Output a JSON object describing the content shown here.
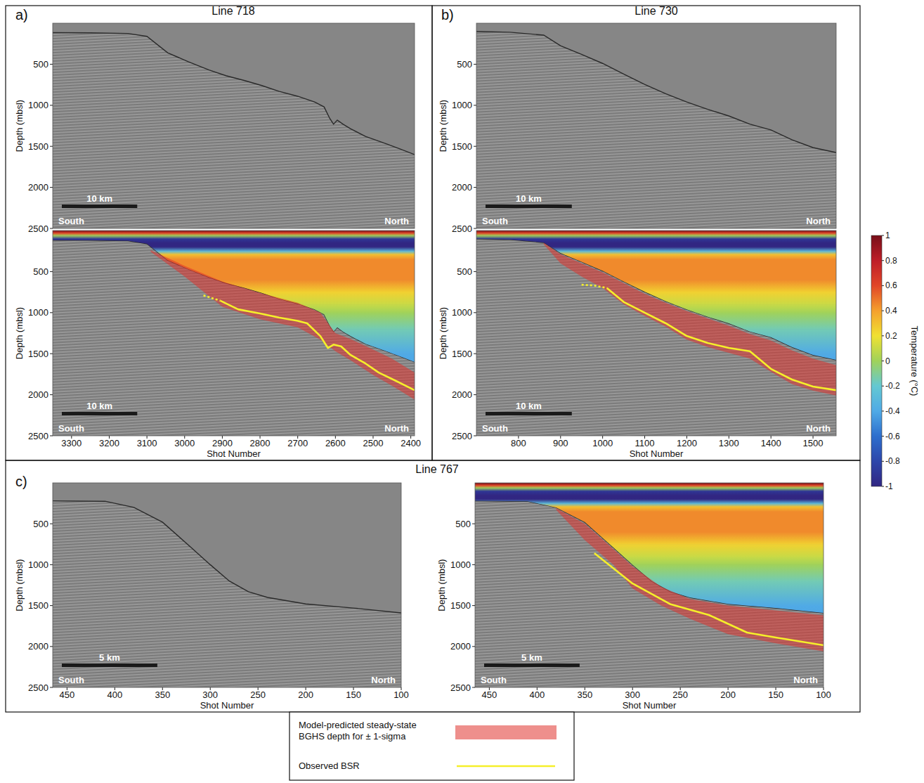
{
  "chart_data": [
    {
      "type": "line",
      "title": "Line 718",
      "panel_label": "a)",
      "y_label": "Depth (mbsl)",
      "xlim": [
        3350,
        2390
      ],
      "ylim": [
        2500,
        0
      ],
      "yticks": [
        500,
        1000,
        1500,
        2000,
        2500
      ],
      "tick_labels": "y",
      "direction_labels": [
        "South",
        "North"
      ],
      "scale_bar": {
        "label": "10 km",
        "length": 200
      },
      "seafloor": {
        "x": [
          3350,
          3250,
          3150,
          3100,
          3045,
          2990,
          2935,
          2890,
          2840,
          2795,
          2750,
          2700,
          2655,
          2630,
          2615,
          2605,
          2595,
          2580,
          2560,
          2520,
          2465,
          2430,
          2390
        ],
        "values": [
          115,
          118,
          125,
          160,
          360,
          470,
          570,
          640,
          700,
          760,
          830,
          890,
          960,
          1020,
          1160,
          1230,
          1180,
          1230,
          1285,
          1380,
          1470,
          1530,
          1600
        ]
      }
    },
    {
      "type": "line",
      "y_label": "Depth (mbsl)",
      "x_label": "Shot Number",
      "xlim": [
        3350,
        2390
      ],
      "ylim": [
        2500,
        0
      ],
      "xticks": [
        3300,
        3200,
        3100,
        3000,
        2900,
        2800,
        2700,
        2600,
        2500,
        2400
      ],
      "yticks": [
        500,
        1000,
        1500,
        2000,
        2500
      ],
      "direction_labels": [
        "South",
        "North"
      ],
      "scale_bar": {
        "label": "10 km",
        "length": 200
      },
      "seafloor": {
        "x": [
          3350,
          3250,
          3150,
          3100,
          3045,
          2990,
          2935,
          2890,
          2840,
          2795,
          2750,
          2700,
          2655,
          2630,
          2615,
          2605,
          2595,
          2580,
          2560,
          2520,
          2465,
          2430,
          2390
        ],
        "values": [
          115,
          118,
          125,
          160,
          360,
          470,
          570,
          640,
          700,
          760,
          830,
          890,
          960,
          1020,
          1160,
          1230,
          1180,
          1230,
          1285,
          1380,
          1470,
          1530,
          1600
        ]
      },
      "series": [
        {
          "name": "Model-predicted steady-state BGHS depth for ± 1-sigma",
          "type": "band",
          "color": "#e0332e",
          "x": [
            3090,
            3000,
            2900,
            2800,
            2700,
            2640,
            2600,
            2560,
            2500,
            2450,
            2390
          ],
          "low": [
            240,
            430,
            620,
            760,
            880,
            1000,
            1250,
            1320,
            1450,
            1560,
            1730
          ],
          "high": [
            260,
            560,
            930,
            1080,
            1180,
            1330,
            1470,
            1580,
            1760,
            1890,
            2060
          ]
        },
        {
          "name": "Observed BSR",
          "type": "line",
          "color": "#f5ef2a",
          "line_style": "solid",
          "x": [
            2905,
            2858,
            2800,
            2750,
            2700,
            2675,
            2640,
            2620,
            2605,
            2585,
            2560,
            2520,
            2485,
            2440,
            2390
          ],
          "values": [
            855,
            960,
            1010,
            1060,
            1100,
            1130,
            1285,
            1430,
            1390,
            1410,
            1515,
            1620,
            1730,
            1830,
            1945
          ]
        }
      ],
      "bsr_inferred": {
        "line_style": "dashed",
        "x": [
          2950,
          2930,
          2905
        ],
        "values": [
          790,
          820,
          855
        ]
      }
    },
    {
      "type": "line",
      "title": "Line 730",
      "panel_label": "b)",
      "y_label": "Depth (mbsl)",
      "xlim": [
        700,
        1555
      ],
      "ylim": [
        2500,
        0
      ],
      "yticks": [
        500,
        1000,
        1500,
        2000,
        2500
      ],
      "tick_labels": "y",
      "direction_labels": [
        "South",
        "North"
      ],
      "scale_bar": {
        "label": "10 km",
        "length": 205
      },
      "seafloor": {
        "x": [
          700,
          780,
          860,
          900,
          950,
          1000,
          1050,
          1100,
          1150,
          1200,
          1250,
          1300,
          1350,
          1400,
          1450,
          1500,
          1555
        ],
        "values": [
          100,
          110,
          145,
          275,
          380,
          490,
          620,
          745,
          860,
          960,
          1050,
          1130,
          1230,
          1300,
          1420,
          1515,
          1575
        ]
      }
    },
    {
      "type": "line",
      "y_label": "Depth (mbsl)",
      "x_label": "Shot Number",
      "xlim": [
        700,
        1555
      ],
      "ylim": [
        2500,
        0
      ],
      "xticks": [
        800,
        900,
        1000,
        1100,
        1200,
        1300,
        1400,
        1500
      ],
      "yticks": [
        500,
        1000,
        1500,
        2000,
        2500
      ],
      "direction_labels": [
        "South",
        "North"
      ],
      "scale_bar": {
        "label": "10 km",
        "length": 205
      },
      "seafloor": {
        "x": [
          700,
          780,
          860,
          900,
          950,
          1000,
          1050,
          1100,
          1150,
          1200,
          1250,
          1300,
          1350,
          1400,
          1450,
          1500,
          1555
        ],
        "values": [
          100,
          110,
          145,
          275,
          380,
          490,
          620,
          745,
          860,
          960,
          1050,
          1130,
          1230,
          1300,
          1420,
          1515,
          1575
        ]
      },
      "series": [
        {
          "name": "Model-predicted steady-state BGHS depth for ± 1-sigma",
          "type": "band",
          "color": "#e0332e",
          "x": [
            860,
            900,
            950,
            1000,
            1050,
            1100,
            1150,
            1200,
            1250,
            1300,
            1350,
            1400,
            1450,
            1500,
            1555
          ],
          "low": [
            150,
            290,
            400,
            510,
            640,
            770,
            880,
            980,
            1070,
            1160,
            1260,
            1340,
            1460,
            1560,
            1640
          ],
          "high": [
            170,
            400,
            560,
            700,
            900,
            1040,
            1170,
            1330,
            1420,
            1490,
            1560,
            1720,
            1870,
            1950,
            2010
          ]
        },
        {
          "name": "Observed BSR",
          "type": "line",
          "color": "#f5ef2a",
          "line_style": "solid",
          "x": [
            1010,
            1050,
            1100,
            1150,
            1200,
            1250,
            1300,
            1350,
            1400,
            1450,
            1500,
            1555
          ],
          "values": [
            700,
            870,
            1000,
            1130,
            1285,
            1370,
            1430,
            1470,
            1685,
            1815,
            1900,
            1945
          ]
        }
      ],
      "bsr_inferred": {
        "line_style": "dashed",
        "x": [
          950,
          980,
          1010
        ],
        "values": [
          660,
          670,
          700
        ]
      }
    },
    {
      "type": "line",
      "title": "Line 767",
      "panel_label": "c)",
      "y_label": "Depth (mbsl)",
      "x_label": "Shot Number",
      "xlim": [
        465,
        100
      ],
      "ylim": [
        2500,
        0
      ],
      "xticks": [
        450,
        400,
        350,
        300,
        250,
        200,
        150,
        100
      ],
      "yticks": [
        500,
        1000,
        1500,
        2000,
        2500
      ],
      "direction_labels": [
        "South",
        "North"
      ],
      "scale_bar": {
        "label": "5 km",
        "length": 100
      },
      "seafloor": {
        "x": [
          465,
          410,
          380,
          350,
          320,
          300,
          280,
          260,
          240,
          200,
          150,
          100
        ],
        "values": [
          220,
          225,
          300,
          480,
          790,
          1000,
          1200,
          1330,
          1400,
          1480,
          1530,
          1590
        ]
      }
    },
    {
      "type": "line",
      "y_label": "Depth (mbsl)",
      "x_label": "Shot Number",
      "xlim": [
        465,
        100
      ],
      "ylim": [
        2500,
        0
      ],
      "xticks": [
        450,
        400,
        350,
        300,
        250,
        200,
        150,
        100
      ],
      "yticks": [
        500,
        1000,
        1500,
        2000,
        2500
      ],
      "direction_labels": [
        "South",
        "North"
      ],
      "scale_bar": {
        "label": "5 km",
        "length": 100
      },
      "seafloor": {
        "x": [
          465,
          410,
          380,
          350,
          320,
          300,
          280,
          260,
          240,
          200,
          150,
          100
        ],
        "values": [
          220,
          225,
          300,
          480,
          790,
          1000,
          1200,
          1330,
          1400,
          1480,
          1530,
          1590
        ]
      },
      "series": [
        {
          "name": "Model-predicted steady-state BGHS depth for ± 1-sigma",
          "type": "band",
          "color": "#e0332e",
          "x": [
            380,
            350,
            320,
            300,
            270,
            240,
            200,
            150,
            100
          ],
          "low": [
            310,
            500,
            810,
            1020,
            1270,
            1420,
            1500,
            1560,
            1620
          ],
          "high": [
            330,
            700,
            1000,
            1290,
            1500,
            1660,
            1850,
            1960,
            2060
          ]
        },
        {
          "name": "Observed BSR",
          "type": "line",
          "color": "#f5ef2a",
          "line_style": "solid",
          "x": [
            340,
            300,
            260,
            220,
            180,
            150,
            100
          ],
          "values": [
            860,
            1230,
            1485,
            1615,
            1830,
            1890,
            1985
          ]
        }
      ]
    }
  ],
  "water_temperature": {
    "depth": [
      0,
      30,
      60,
      100,
      150,
      200,
      250,
      290,
      350,
      600,
      750,
      900,
      1000,
      1200,
      1500,
      2500
    ],
    "values": [
      1,
      0.6,
      0,
      -0.9,
      -1,
      -1,
      -0.3,
      0.3,
      0.45,
      0.45,
      0.25,
      0.1,
      0,
      -0.15,
      -0.4,
      -0.5
    ]
  },
  "colorbar": {
    "label": "Temperature (°C)",
    "lim": [
      -1,
      1
    ],
    "ticks": [
      -1,
      -0.8,
      -0.6,
      -0.4,
      -0.2,
      0,
      0.2,
      0.4,
      0.6,
      0.8,
      1
    ]
  }
}
